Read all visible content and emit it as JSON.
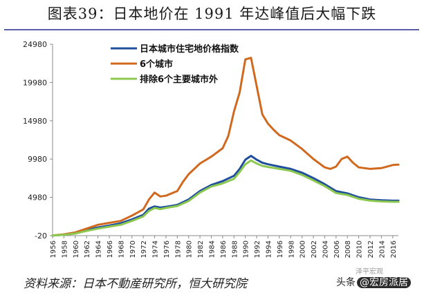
{
  "title": "图表39：日本地价在 1991 年达峰值后大幅下跌",
  "source": "资料来源：日本不動産研究所，恒大研究院",
  "watermark": {
    "prefix": "头条",
    "handle": "@宏房派居",
    "sub": "泽平宏观"
  },
  "chart_data": {
    "type": "line",
    "ylim": [
      -20,
      24980
    ],
    "yticks": [
      -20,
      4980,
      9980,
      14980,
      19980,
      24980
    ],
    "xlim": [
      1956,
      2017
    ],
    "xticks": [
      1956,
      1958,
      1960,
      1962,
      1964,
      1966,
      1968,
      1970,
      1972,
      1974,
      1976,
      1978,
      1980,
      1982,
      1984,
      1986,
      1988,
      1990,
      1992,
      1994,
      1996,
      1998,
      2000,
      2002,
      2004,
      2006,
      2008,
      2010,
      2012,
      2014,
      2016
    ],
    "grid": false,
    "legend_position": "top-left",
    "series": [
      {
        "name": "日本城市住宅地价格指数",
        "color": "#1f4e9c",
        "points": [
          [
            1956,
            0
          ],
          [
            1958,
            100
          ],
          [
            1960,
            300
          ],
          [
            1962,
            700
          ],
          [
            1964,
            1050
          ],
          [
            1966,
            1300
          ],
          [
            1968,
            1600
          ],
          [
            1970,
            2100
          ],
          [
            1972,
            2700
          ],
          [
            1973,
            3500
          ],
          [
            1974,
            3800
          ],
          [
            1975,
            3650
          ],
          [
            1976,
            3750
          ],
          [
            1978,
            4000
          ],
          [
            1980,
            4700
          ],
          [
            1982,
            5800
          ],
          [
            1984,
            6600
          ],
          [
            1986,
            7100
          ],
          [
            1988,
            7800
          ],
          [
            1989,
            8700
          ],
          [
            1990,
            9900
          ],
          [
            1991,
            10400
          ],
          [
            1992,
            9900
          ],
          [
            1993,
            9500
          ],
          [
            1994,
            9300
          ],
          [
            1996,
            9000
          ],
          [
            1998,
            8700
          ],
          [
            2000,
            8200
          ],
          [
            2002,
            7500
          ],
          [
            2004,
            6700
          ],
          [
            2006,
            5800
          ],
          [
            2008,
            5500
          ],
          [
            2010,
            5000
          ],
          [
            2012,
            4700
          ],
          [
            2014,
            4600
          ],
          [
            2016,
            4550
          ],
          [
            2017,
            4550
          ]
        ]
      },
      {
        "name": "6个城市",
        "color": "#d0691e",
        "points": [
          [
            1956,
            0
          ],
          [
            1958,
            150
          ],
          [
            1960,
            400
          ],
          [
            1962,
            900
          ],
          [
            1964,
            1400
          ],
          [
            1966,
            1650
          ],
          [
            1968,
            1900
          ],
          [
            1970,
            2600
          ],
          [
            1972,
            3400
          ],
          [
            1973,
            4700
          ],
          [
            1974,
            5600
          ],
          [
            1975,
            5100
          ],
          [
            1976,
            5200
          ],
          [
            1978,
            5800
          ],
          [
            1979,
            7000
          ],
          [
            1980,
            8000
          ],
          [
            1982,
            9400
          ],
          [
            1984,
            10300
          ],
          [
            1986,
            11400
          ],
          [
            1987,
            13000
          ],
          [
            1988,
            16200
          ],
          [
            1989,
            18700
          ],
          [
            1990,
            23000
          ],
          [
            1991,
            23200
          ],
          [
            1992,
            19500
          ],
          [
            1993,
            15800
          ],
          [
            1994,
            14600
          ],
          [
            1995,
            13800
          ],
          [
            1996,
            13100
          ],
          [
            1998,
            12400
          ],
          [
            2000,
            11300
          ],
          [
            2002,
            10000
          ],
          [
            2004,
            8900
          ],
          [
            2005,
            8700
          ],
          [
            2006,
            9000
          ],
          [
            2007,
            10000
          ],
          [
            2008,
            10300
          ],
          [
            2009,
            9500
          ],
          [
            2010,
            8900
          ],
          [
            2012,
            8700
          ],
          [
            2014,
            8800
          ],
          [
            2016,
            9200
          ],
          [
            2017,
            9250
          ]
        ]
      },
      {
        "name": "排除6个主要城市外",
        "color": "#8cc850",
        "points": [
          [
            1956,
            0
          ],
          [
            1958,
            90
          ],
          [
            1960,
            250
          ],
          [
            1962,
            600
          ],
          [
            1964,
            900
          ],
          [
            1966,
            1150
          ],
          [
            1968,
            1400
          ],
          [
            1970,
            1900
          ],
          [
            1972,
            2500
          ],
          [
            1973,
            3200
          ],
          [
            1974,
            3600
          ],
          [
            1975,
            3450
          ],
          [
            1976,
            3600
          ],
          [
            1978,
            3850
          ],
          [
            1980,
            4500
          ],
          [
            1982,
            5600
          ],
          [
            1984,
            6400
          ],
          [
            1986,
            6800
          ],
          [
            1988,
            7400
          ],
          [
            1989,
            8300
          ],
          [
            1990,
            9300
          ],
          [
            1991,
            9800
          ],
          [
            1992,
            9400
          ],
          [
            1993,
            9100
          ],
          [
            1994,
            8950
          ],
          [
            1996,
            8700
          ],
          [
            1998,
            8450
          ],
          [
            2000,
            7900
          ],
          [
            2002,
            7200
          ],
          [
            2004,
            6450
          ],
          [
            2006,
            5550
          ],
          [
            2008,
            5300
          ],
          [
            2010,
            4800
          ],
          [
            2012,
            4550
          ],
          [
            2014,
            4450
          ],
          [
            2016,
            4400
          ],
          [
            2017,
            4400
          ]
        ]
      }
    ]
  }
}
